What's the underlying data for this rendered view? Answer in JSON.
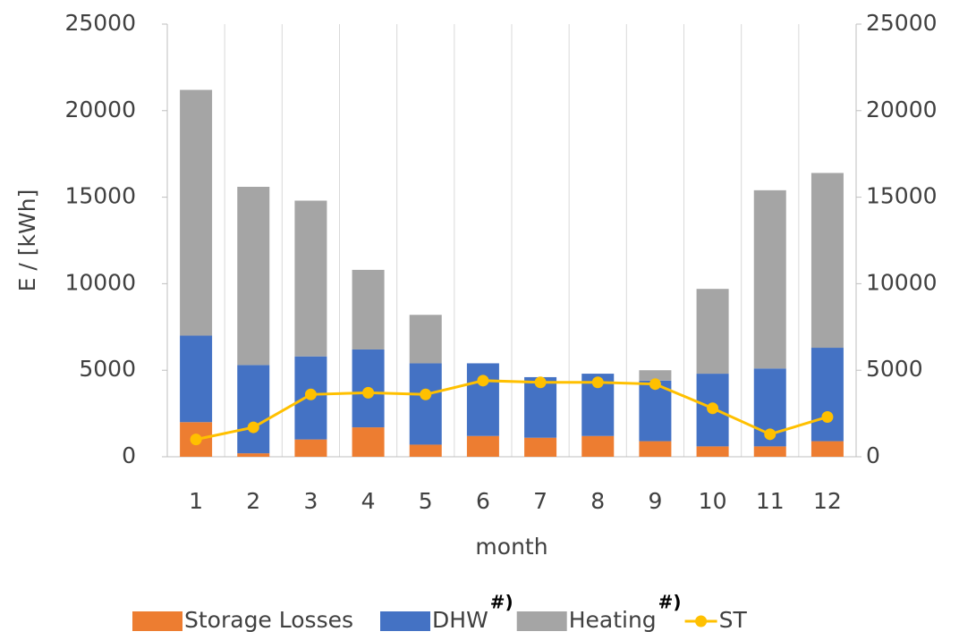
{
  "chart_data": {
    "type": "bar",
    "stacked": true,
    "x_label": "month",
    "y_label": "E / [kWh]",
    "categories": [
      "1",
      "2",
      "3",
      "4",
      "5",
      "6",
      "7",
      "8",
      "9",
      "10",
      "11",
      "12"
    ],
    "series": [
      {
        "name": "Storage Losses",
        "type": "bar",
        "color": "#ed7d31",
        "values": [
          2000,
          200,
          1000,
          1700,
          700,
          1200,
          1100,
          1200,
          900,
          600,
          600,
          900
        ]
      },
      {
        "name": "DHW",
        "note": "#)",
        "type": "bar",
        "color": "#4472c4",
        "values": [
          5000,
          5100,
          4800,
          4500,
          4700,
          4200,
          3500,
          3600,
          3500,
          4200,
          4500,
          5400
        ]
      },
      {
        "name": "Heating",
        "note": "#)",
        "type": "bar",
        "color": "#a5a5a5",
        "values": [
          14200,
          10300,
          9000,
          4600,
          2800,
          0,
          0,
          0,
          600,
          4900,
          10300,
          10100
        ]
      },
      {
        "name": "ST",
        "type": "line",
        "axis": "y2",
        "color": "#ffc000",
        "values": [
          1000,
          1700,
          3600,
          3700,
          3600,
          4400,
          4300,
          4300,
          4200,
          2800,
          1300,
          2300
        ]
      }
    ],
    "ylim": [
      0,
      25000
    ],
    "yticks": [
      0,
      5000,
      10000,
      15000,
      20000,
      25000
    ],
    "y2lim": [
      0,
      25000
    ],
    "y2ticks": [
      0,
      5000,
      10000,
      15000,
      20000,
      25000
    ],
    "grid": "x",
    "legend": "bottom"
  }
}
